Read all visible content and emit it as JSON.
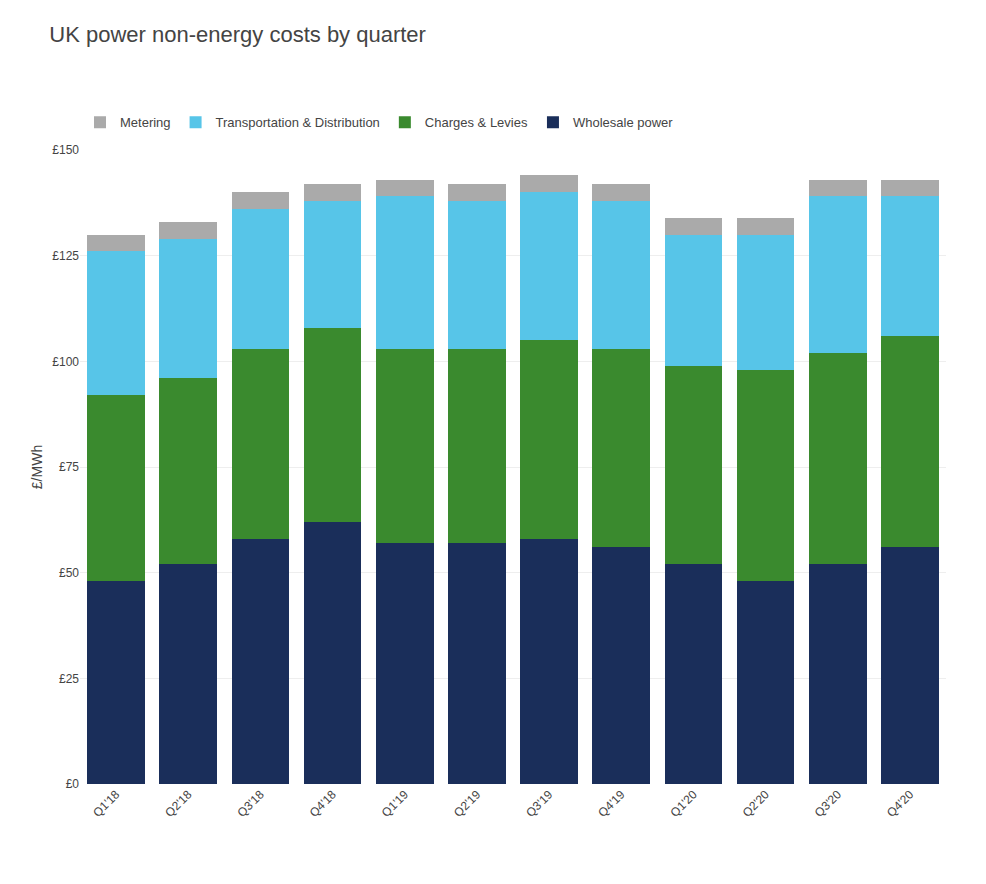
{
  "chart_data": {
    "type": "bar",
    "stacked": true,
    "title": "UK power non-energy costs by quarter",
    "ylabel": "£/MWh",
    "categories": [
      "Q1'18",
      "Q2'18",
      "Q3'18",
      "Q4'18",
      "Q1'19",
      "Q2'19",
      "Q3'19",
      "Q4'19",
      "Q1'20",
      "Q2'20",
      "Q3'20",
      "Q4'20"
    ],
    "series": [
      {
        "name": "Wholesale power",
        "color": "#1a2e5a",
        "values": [
          48,
          52,
          58,
          62,
          57,
          57,
          58,
          56,
          52,
          48,
          52,
          56
        ]
      },
      {
        "name": "Charges & Levies",
        "color": "#3a8a2e",
        "values": [
          44,
          44,
          45,
          46,
          46,
          46,
          47,
          47,
          47,
          50,
          50,
          50
        ]
      },
      {
        "name": "Transportation & Distribution",
        "color": "#57c5e8",
        "values": [
          34,
          33,
          33,
          30,
          36,
          35,
          35,
          35,
          31,
          32,
          37,
          33
        ]
      },
      {
        "name": "Metering",
        "color": "#aaaaaa",
        "values": [
          4,
          4,
          4,
          4,
          4,
          4,
          4,
          4,
          4,
          4,
          4,
          4
        ]
      }
    ],
    "ylim": [
      0,
      150
    ],
    "yticks": [
      {
        "value": 0,
        "label": "£0"
      },
      {
        "value": 25,
        "label": "£25"
      },
      {
        "value": 50,
        "label": "£50"
      },
      {
        "value": 75,
        "label": "£75"
      },
      {
        "value": 100,
        "label": "£100"
      },
      {
        "value": 125,
        "label": "£125"
      },
      {
        "value": 150,
        "label": "£150"
      }
    ],
    "grid": true,
    "legend": "top left"
  }
}
